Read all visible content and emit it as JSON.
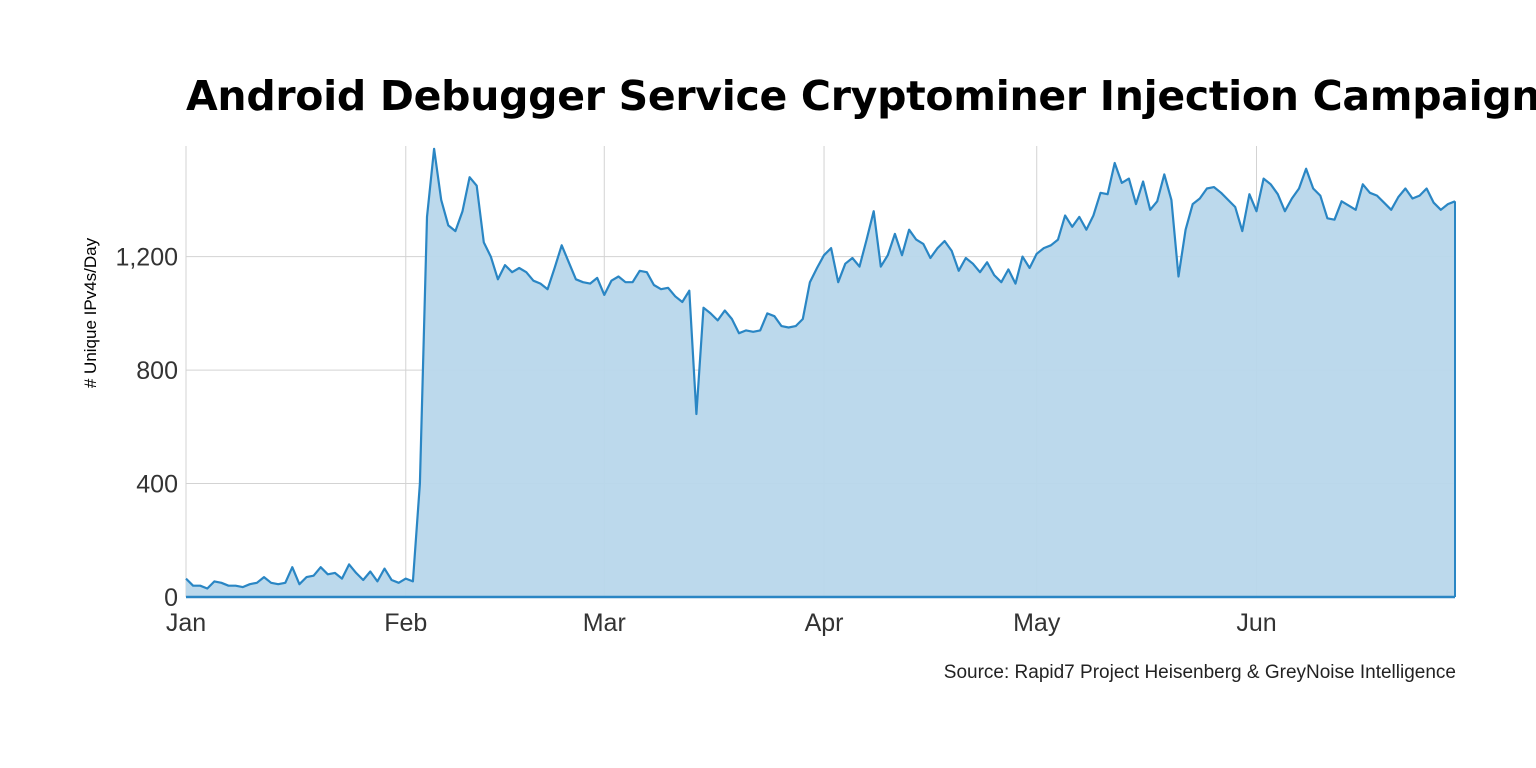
{
  "chart_data": {
    "type": "area",
    "title": "Android Debugger Service Cryptominer Injection Campaign",
    "ylabel": "# Unique IPv4s/Day",
    "xlabel": "",
    "source": "Source: Rapid7 Project Heisenberg & GreyNoise Intelligence",
    "x_tick_labels": [
      "Jan",
      "Feb",
      "Mar",
      "Apr",
      "May",
      "Jun"
    ],
    "y_ticks": [
      0,
      400,
      800,
      1200
    ],
    "y_tick_labels": [
      "0",
      "400",
      "800",
      "1,200"
    ],
    "ylim": [
      0,
      1590
    ],
    "x_range": [
      "2018-01-01",
      "2018-06-29"
    ],
    "grid": true,
    "colors": {
      "line": "#2a86c4",
      "fill": "#b8d7eb",
      "grid": "#d3d3d3",
      "axis": "#2a86c4"
    },
    "x": [
      "2018-01-01",
      "2018-01-02",
      "2018-01-03",
      "2018-01-04",
      "2018-01-05",
      "2018-01-06",
      "2018-01-07",
      "2018-01-08",
      "2018-01-09",
      "2018-01-10",
      "2018-01-11",
      "2018-01-12",
      "2018-01-13",
      "2018-01-14",
      "2018-01-15",
      "2018-01-16",
      "2018-01-17",
      "2018-01-18",
      "2018-01-19",
      "2018-01-20",
      "2018-01-21",
      "2018-01-22",
      "2018-01-23",
      "2018-01-24",
      "2018-01-25",
      "2018-01-26",
      "2018-01-27",
      "2018-01-28",
      "2018-01-29",
      "2018-01-30",
      "2018-01-31",
      "2018-02-01",
      "2018-02-02",
      "2018-02-03",
      "2018-02-04",
      "2018-02-05",
      "2018-02-06",
      "2018-02-07",
      "2018-02-08",
      "2018-02-09",
      "2018-02-10",
      "2018-02-11",
      "2018-02-12",
      "2018-02-13",
      "2018-02-14",
      "2018-02-15",
      "2018-02-16",
      "2018-02-17",
      "2018-02-18",
      "2018-02-19",
      "2018-02-20",
      "2018-02-21",
      "2018-02-22",
      "2018-02-23",
      "2018-02-24",
      "2018-02-25",
      "2018-02-26",
      "2018-02-27",
      "2018-02-28",
      "2018-03-01",
      "2018-03-02",
      "2018-03-03",
      "2018-03-04",
      "2018-03-05",
      "2018-03-06",
      "2018-03-07",
      "2018-03-08",
      "2018-03-09",
      "2018-03-10",
      "2018-03-11",
      "2018-03-12",
      "2018-03-13",
      "2018-03-14",
      "2018-03-15",
      "2018-03-16",
      "2018-03-17",
      "2018-03-18",
      "2018-03-19",
      "2018-03-20",
      "2018-03-21",
      "2018-03-22",
      "2018-03-23",
      "2018-03-24",
      "2018-03-25",
      "2018-03-26",
      "2018-03-27",
      "2018-03-28",
      "2018-03-29",
      "2018-03-30",
      "2018-03-31",
      "2018-04-01",
      "2018-04-02",
      "2018-04-03",
      "2018-04-04",
      "2018-04-05",
      "2018-04-06",
      "2018-04-07",
      "2018-04-08",
      "2018-04-09",
      "2018-04-10",
      "2018-04-11",
      "2018-04-12",
      "2018-04-13",
      "2018-04-14",
      "2018-04-15",
      "2018-04-16",
      "2018-04-17",
      "2018-04-18",
      "2018-04-19",
      "2018-04-20",
      "2018-04-21",
      "2018-04-22",
      "2018-04-23",
      "2018-04-24",
      "2018-04-25",
      "2018-04-26",
      "2018-04-27",
      "2018-04-28",
      "2018-04-29",
      "2018-04-30",
      "2018-05-01",
      "2018-05-02",
      "2018-05-03",
      "2018-05-04",
      "2018-05-05",
      "2018-05-06",
      "2018-05-07",
      "2018-05-08",
      "2018-05-09",
      "2018-05-10",
      "2018-05-11",
      "2018-05-12",
      "2018-05-13",
      "2018-05-14",
      "2018-05-15",
      "2018-05-16",
      "2018-05-17",
      "2018-05-18",
      "2018-05-19",
      "2018-05-20",
      "2018-05-21",
      "2018-05-22",
      "2018-05-23",
      "2018-05-24",
      "2018-05-25",
      "2018-05-26",
      "2018-05-27",
      "2018-05-28",
      "2018-05-29",
      "2018-05-30",
      "2018-05-31",
      "2018-06-01",
      "2018-06-02",
      "2018-06-03",
      "2018-06-04",
      "2018-06-05",
      "2018-06-06",
      "2018-06-07",
      "2018-06-08",
      "2018-06-09",
      "2018-06-10",
      "2018-06-11",
      "2018-06-12",
      "2018-06-13",
      "2018-06-14",
      "2018-06-15",
      "2018-06-16",
      "2018-06-17",
      "2018-06-18",
      "2018-06-19",
      "2018-06-20",
      "2018-06-21",
      "2018-06-22",
      "2018-06-23",
      "2018-06-24",
      "2018-06-25",
      "2018-06-26",
      "2018-06-27",
      "2018-06-28",
      "2018-06-29"
    ],
    "series": [
      {
        "values": [
          65,
          40,
          40,
          30,
          55,
          50,
          40,
          40,
          35,
          45,
          50,
          70,
          50,
          45,
          50,
          105,
          45,
          70,
          75,
          105,
          80,
          85,
          65,
          115,
          85,
          60,
          90,
          55,
          100,
          60,
          50,
          65,
          55,
          400,
          1340,
          1580,
          1400,
          1310,
          1290,
          1360,
          1480,
          1450,
          1250,
          1200,
          1120,
          1170,
          1145,
          1160,
          1145,
          1115,
          1105,
          1085,
          1160,
          1240,
          1180,
          1120,
          1110,
          1105,
          1125,
          1065,
          1115,
          1130,
          1110,
          1110,
          1150,
          1145,
          1100,
          1085,
          1090,
          1060,
          1040,
          1080,
          645,
          1020,
          1000,
          975,
          1010,
          980,
          930,
          940,
          935,
          940,
          1000,
          990,
          955,
          950,
          955,
          980,
          1110,
          1160,
          1205,
          1230,
          1110,
          1175,
          1195,
          1165,
          1260,
          1360,
          1165,
          1205,
          1280,
          1205,
          1295,
          1260,
          1245,
          1195,
          1230,
          1255,
          1220,
          1150,
          1195,
          1175,
          1145,
          1180,
          1135,
          1110,
          1155,
          1105,
          1200,
          1160,
          1210,
          1230,
          1240,
          1260,
          1345,
          1305,
          1340,
          1295,
          1345,
          1425,
          1420,
          1530,
          1460,
          1475,
          1385,
          1465,
          1365,
          1395,
          1490,
          1400,
          1130,
          1295,
          1385,
          1405,
          1440,
          1445,
          1425,
          1400,
          1375,
          1290,
          1420,
          1360,
          1475,
          1455,
          1420,
          1360,
          1405,
          1440,
          1510,
          1440,
          1415,
          1335,
          1330,
          1395,
          1380,
          1365,
          1455,
          1425,
          1415,
          1390,
          1365,
          1410,
          1440,
          1405,
          1415,
          1440,
          1390,
          1365,
          1385,
          1395
        ]
      }
    ]
  }
}
